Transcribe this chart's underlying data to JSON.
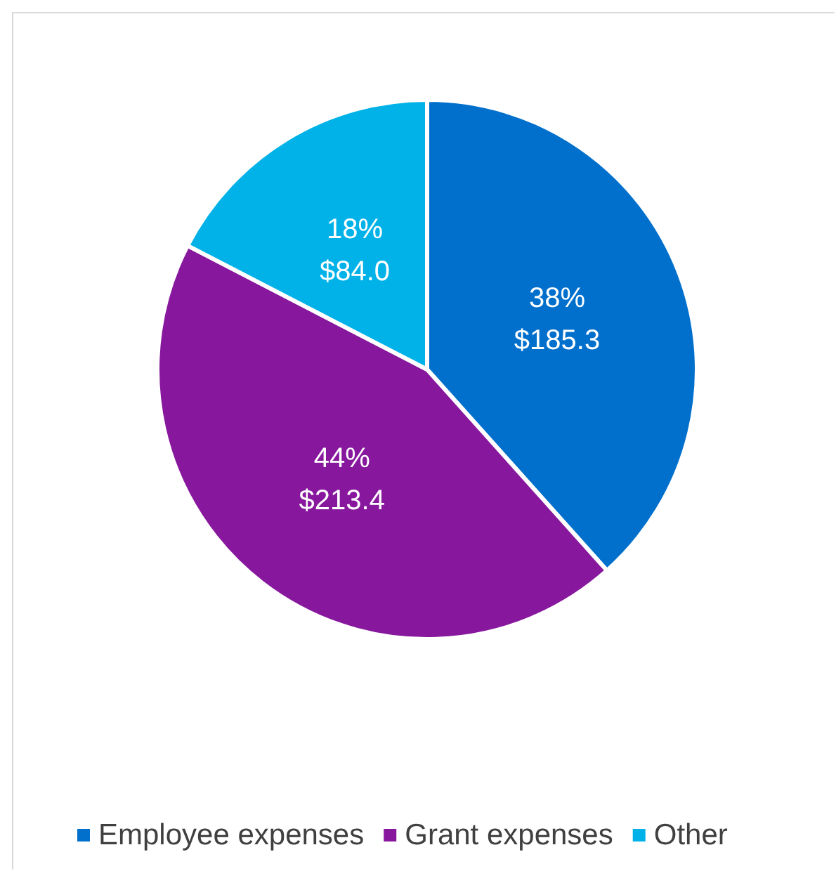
{
  "chart_data": {
    "type": "pie",
    "categories": [
      "Employee expenses",
      "Grant expenses",
      "Other"
    ],
    "values": [
      185.3,
      213.4,
      84.0
    ],
    "colors": [
      "#0070cc",
      "#87189d",
      "#00b2e8"
    ],
    "value_labels": [
      "38%\n$185.3",
      "44%\n$213.4",
      "18%\n$84.0"
    ],
    "legend": "bottom"
  }
}
